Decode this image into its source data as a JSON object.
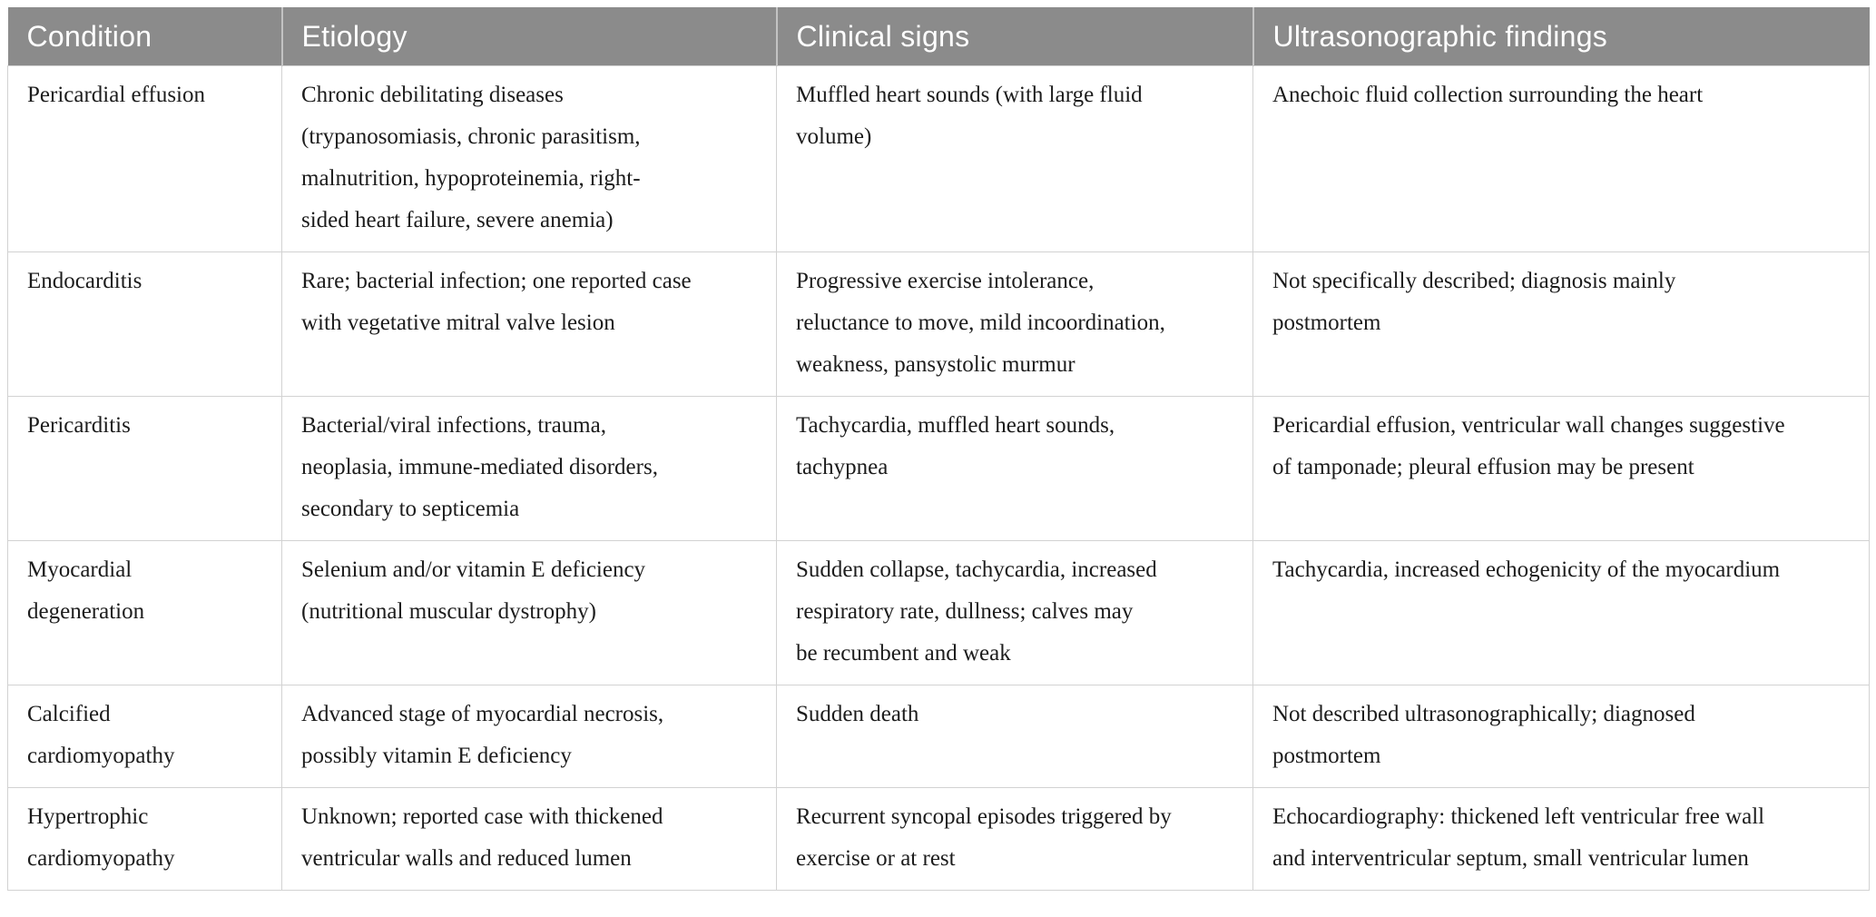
{
  "colors": {
    "header_bg": "#8b8b8b",
    "header_text": "#ffffff",
    "body_text": "#1c1c1c",
    "border": "#d2d2d2"
  },
  "table": {
    "headers": [
      "Condition",
      "Etiology",
      "Clinical signs",
      "Ultrasonographic findings"
    ],
    "rows": [
      {
        "condition": "Pericardial effusion",
        "etiology": "Chronic debilitating diseases\n(trypanosomiasis, chronic parasitism,\nmalnutrition, hypoproteinemia, right-\nsided heart failure, severe anemia)",
        "clinical_signs": "Muffled heart sounds (with large fluid\nvolume)",
        "ultrasonographic_findings": "Anechoic fluid collection surrounding the heart"
      },
      {
        "condition": "Endocarditis",
        "etiology": "Rare; bacterial infection; one reported case\nwith vegetative mitral valve lesion",
        "clinical_signs": "Progressive exercise intolerance,\nreluctance to move, mild incoordination,\nweakness, pansystolic murmur",
        "ultrasonographic_findings": "Not specifically described; diagnosis mainly\npostmortem"
      },
      {
        "condition": "Pericarditis",
        "etiology": "Bacterial/viral infections, trauma,\nneoplasia, immune-mediated disorders,\nsecondary to septicemia",
        "clinical_signs": "Tachycardia, muffled heart sounds,\ntachypnea",
        "ultrasonographic_findings": "Pericardial effusion, ventricular wall changes suggestive\nof tamponade; pleural effusion may be present"
      },
      {
        "condition": "Myocardial\ndegeneration",
        "etiology": "Selenium and/or vitamin E deficiency\n(nutritional muscular dystrophy)",
        "clinical_signs": "Sudden collapse, tachycardia, increased\nrespiratory rate, dullness; calves may\nbe recumbent and weak",
        "ultrasonographic_findings": "Tachycardia, increased echogenicity of the myocardium"
      },
      {
        "condition": "Calcified\ncardiomyopathy",
        "etiology": "Advanced stage of myocardial necrosis,\npossibly vitamin E deficiency",
        "clinical_signs": "Sudden death",
        "ultrasonographic_findings": "Not described ultrasonographically; diagnosed\npostmortem"
      },
      {
        "condition": "Hypertrophic\ncardiomyopathy",
        "etiology": "Unknown; reported case with thickened\nventricular walls and reduced lumen",
        "clinical_signs": "Recurrent syncopal episodes triggered by\nexercise or at rest",
        "ultrasonographic_findings": "Echocardiography: thickened left ventricular free wall\nand interventricular septum, small ventricular lumen"
      }
    ]
  }
}
